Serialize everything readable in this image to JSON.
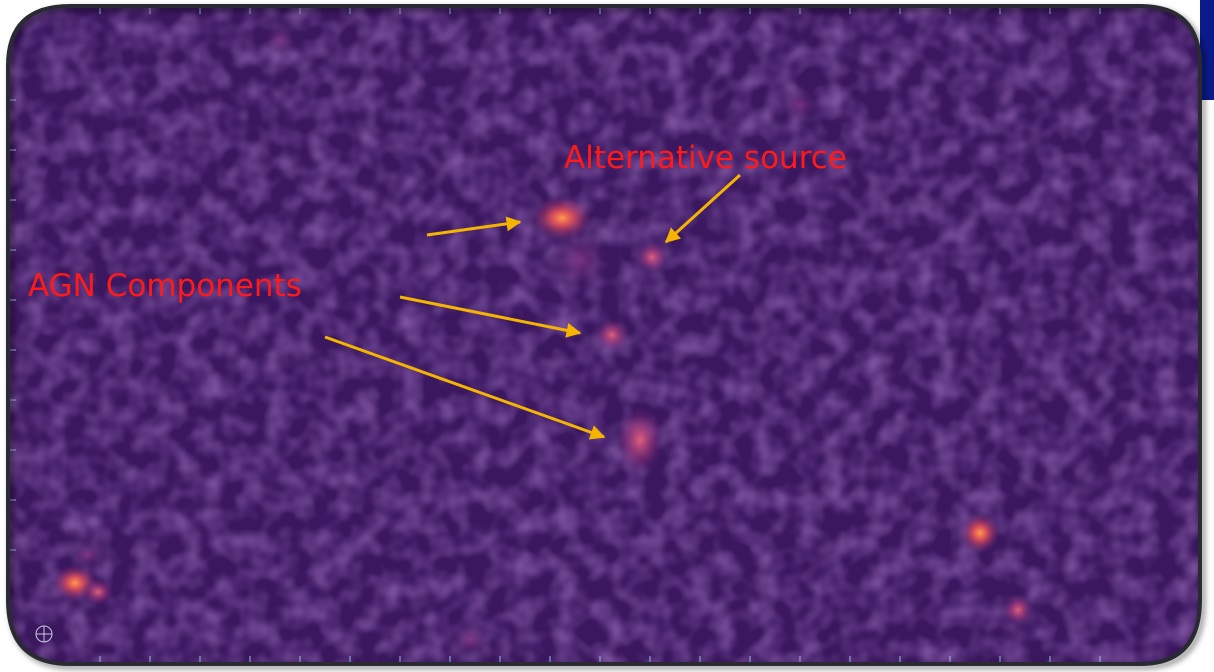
{
  "annotations": {
    "alternative_source": "Alternative source",
    "agn_components": "AGN Components"
  }
}
